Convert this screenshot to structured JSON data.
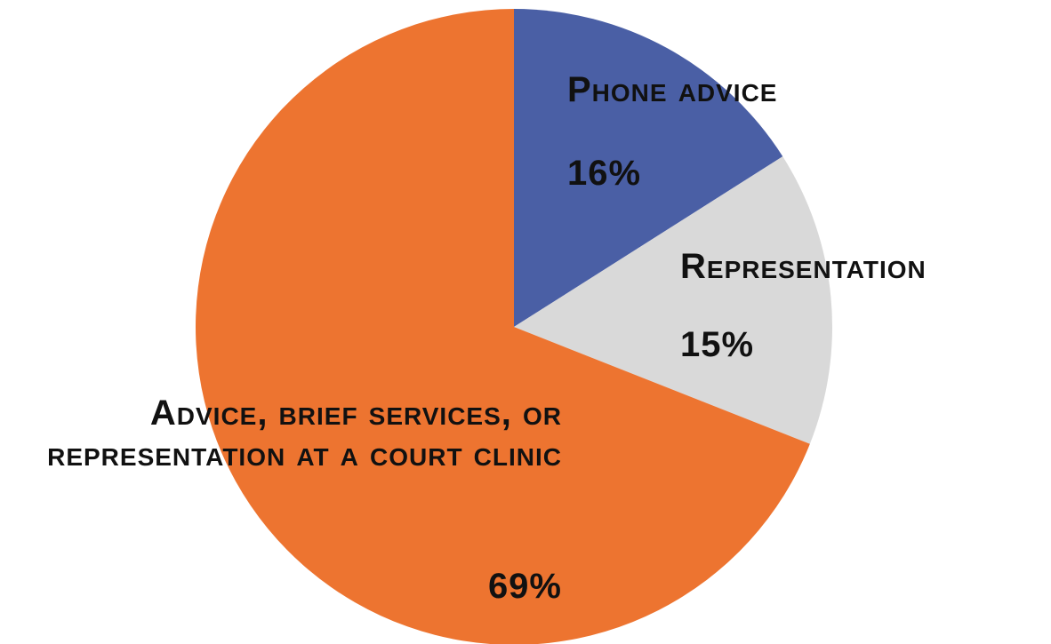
{
  "chart_data": {
    "type": "pie",
    "categories": [
      "Phone advice",
      "Representation",
      "Advice, brief services, or representation at a court clinic"
    ],
    "values": [
      16,
      15,
      69
    ],
    "value_labels": [
      "16%",
      "15%",
      "69%"
    ],
    "colors": [
      "#4a5fa5",
      "#d9d9d9",
      "#ed7430"
    ]
  }
}
